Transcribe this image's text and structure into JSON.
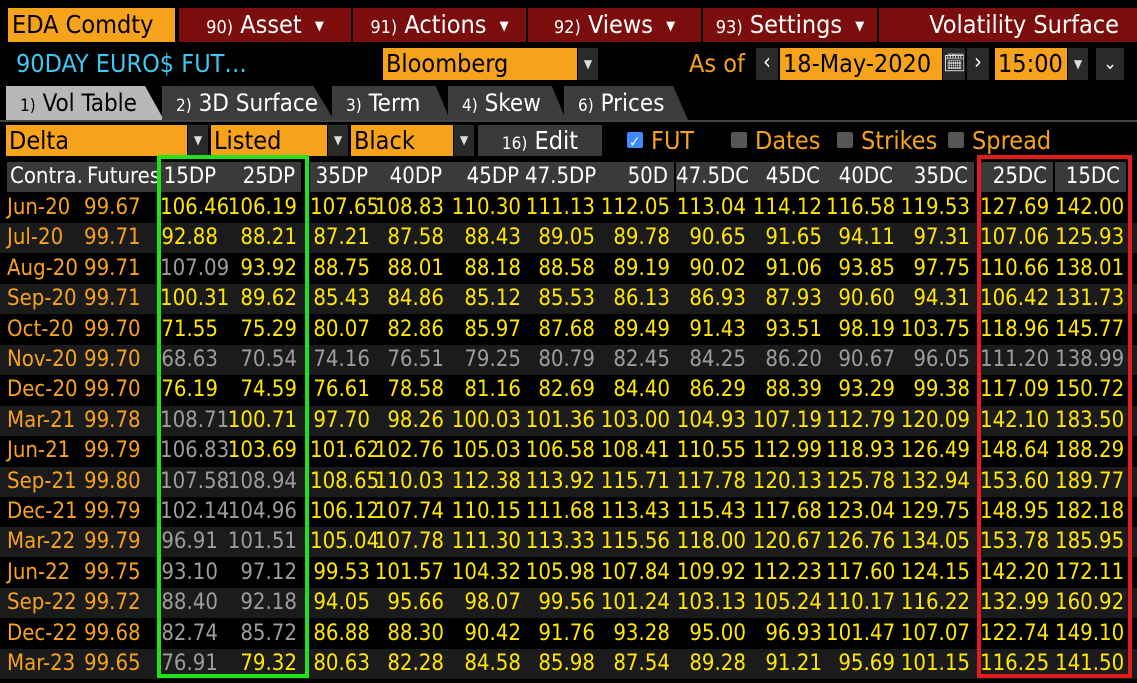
{
  "menubar": {
    "ticker": "EDA Comdty",
    "menus": [
      {
        "num": "90)",
        "label": "Asset"
      },
      {
        "num": "91)",
        "label": "Actions"
      },
      {
        "num": "92)",
        "label": "Views"
      },
      {
        "num": "93)",
        "label": "Settings"
      }
    ],
    "title": "Volatility Surface"
  },
  "toolbar": {
    "instrument": "90DAY EURO$ FUT…",
    "source": "Bloomberg",
    "as_of_label": "As of",
    "date": "18-May-2020",
    "time": "15:00",
    "prev_symbol": "‹",
    "next_symbol": "›"
  },
  "tabs": [
    {
      "num": "1)",
      "label": "Vol Table",
      "active": true
    },
    {
      "num": "2)",
      "label": "3D Surface",
      "active": false
    },
    {
      "num": "3)",
      "label": "Term",
      "active": false
    },
    {
      "num": "4)",
      "label": "Skew",
      "active": false
    },
    {
      "num": "6)",
      "label": "Prices",
      "active": false
    }
  ],
  "filters": {
    "measure": "Delta",
    "strikes_mode": "Listed",
    "model": "Black",
    "edit_num": "16)",
    "edit_label": "Edit",
    "checkboxes": [
      {
        "label": "FUT",
        "checked": true
      },
      {
        "label": "Dates",
        "checked": false
      },
      {
        "label": "Strikes",
        "checked": false
      },
      {
        "label": "Spread",
        "checked": false
      }
    ]
  },
  "table": {
    "headers": [
      "Contra…",
      "Futures",
      "15DP",
      "25DP",
      "35DP",
      "40DP",
      "45DP",
      "47.5DP",
      "50D",
      "47.5DC",
      "45DC",
      "40DC",
      "35DC",
      "25DC",
      "15DC"
    ],
    "rows": [
      {
        "contract": "Jun-20",
        "futures": "99.67",
        "values": [
          "106.46",
          "106.19",
          "107.65",
          "108.83",
          "110.30",
          "111.13",
          "112.05",
          "113.04",
          "114.12",
          "116.58",
          "119.53",
          "127.69",
          "142.00"
        ],
        "gray": []
      },
      {
        "contract": "Jul-20",
        "futures": "99.71",
        "values": [
          "92.88",
          "88.21",
          "87.21",
          "87.58",
          "88.43",
          "89.05",
          "89.78",
          "90.65",
          "91.65",
          "94.11",
          "97.31",
          "107.06",
          "125.93"
        ],
        "gray": []
      },
      {
        "contract": "Aug-20",
        "futures": "99.71",
        "values": [
          "107.09",
          "93.92",
          "88.75",
          "88.01",
          "88.18",
          "88.58",
          "89.19",
          "90.02",
          "91.06",
          "93.85",
          "97.75",
          "110.66",
          "138.01"
        ],
        "gray": [
          0
        ]
      },
      {
        "contract": "Sep-20",
        "futures": "99.71",
        "values": [
          "100.31",
          "89.62",
          "85.43",
          "84.86",
          "85.12",
          "85.53",
          "86.13",
          "86.93",
          "87.93",
          "90.60",
          "94.31",
          "106.42",
          "131.73"
        ],
        "gray": []
      },
      {
        "contract": "Oct-20",
        "futures": "99.70",
        "values": [
          "71.55",
          "75.29",
          "80.07",
          "82.86",
          "85.97",
          "87.68",
          "89.49",
          "91.43",
          "93.51",
          "98.19",
          "103.75",
          "118.96",
          "145.77"
        ],
        "gray": []
      },
      {
        "contract": "Nov-20",
        "futures": "99.70",
        "values": [
          "68.63",
          "70.54",
          "74.16",
          "76.51",
          "79.25",
          "80.79",
          "82.45",
          "84.25",
          "86.20",
          "90.67",
          "96.05",
          "111.20",
          "138.99"
        ],
        "gray": [
          0,
          1,
          2,
          3,
          4,
          5,
          6,
          7,
          8,
          9,
          10,
          11,
          12
        ]
      },
      {
        "contract": "Dec-20",
        "futures": "99.70",
        "values": [
          "76.19",
          "74.59",
          "76.61",
          "78.58",
          "81.16",
          "82.69",
          "84.40",
          "86.29",
          "88.39",
          "93.29",
          "99.38",
          "117.09",
          "150.72"
        ],
        "gray": []
      },
      {
        "contract": "Mar-21",
        "futures": "99.78",
        "values": [
          "108.71",
          "100.71",
          "97.70",
          "98.26",
          "100.03",
          "101.36",
          "103.00",
          "104.93",
          "107.19",
          "112.79",
          "120.09",
          "142.10",
          "183.50"
        ],
        "gray": [
          0
        ]
      },
      {
        "contract": "Jun-21",
        "futures": "99.79",
        "values": [
          "106.83",
          "103.69",
          "101.62",
          "102.76",
          "105.03",
          "106.58",
          "108.41",
          "110.55",
          "112.99",
          "118.93",
          "126.49",
          "148.64",
          "188.29"
        ],
        "gray": [
          0
        ]
      },
      {
        "contract": "Sep-21",
        "futures": "99.80",
        "values": [
          "107.58",
          "108.94",
          "108.65",
          "110.03",
          "112.38",
          "113.92",
          "115.71",
          "117.78",
          "120.13",
          "125.78",
          "132.94",
          "153.60",
          "189.77"
        ],
        "gray": [
          0,
          1
        ]
      },
      {
        "contract": "Dec-21",
        "futures": "99.79",
        "values": [
          "102.14",
          "104.96",
          "106.12",
          "107.74",
          "110.15",
          "111.68",
          "113.43",
          "115.43",
          "117.68",
          "123.04",
          "129.75",
          "148.95",
          "182.18"
        ],
        "gray": [
          0,
          1
        ]
      },
      {
        "contract": "Mar-22",
        "futures": "99.79",
        "values": [
          "96.91",
          "101.51",
          "105.04",
          "107.78",
          "111.30",
          "113.33",
          "115.56",
          "118.00",
          "120.67",
          "126.76",
          "134.05",
          "153.78",
          "185.95"
        ],
        "gray": [
          0,
          1
        ]
      },
      {
        "contract": "Jun-22",
        "futures": "99.75",
        "values": [
          "93.10",
          "97.12",
          "99.53",
          "101.57",
          "104.32",
          "105.98",
          "107.84",
          "109.92",
          "112.23",
          "117.60",
          "124.15",
          "142.20",
          "172.11"
        ],
        "gray": [
          0,
          1
        ]
      },
      {
        "contract": "Sep-22",
        "futures": "99.72",
        "values": [
          "88.40",
          "92.18",
          "94.05",
          "95.66",
          "98.07",
          "99.56",
          "101.24",
          "103.13",
          "105.24",
          "110.17",
          "116.22",
          "132.99",
          "160.92"
        ],
        "gray": [
          0,
          1
        ]
      },
      {
        "contract": "Dec-22",
        "futures": "99.68",
        "values": [
          "82.74",
          "85.72",
          "86.88",
          "88.30",
          "90.42",
          "91.76",
          "93.28",
          "95.00",
          "96.93",
          "101.47",
          "107.07",
          "122.74",
          "149.10"
        ],
        "gray": [
          0,
          1
        ]
      },
      {
        "contract": "Mar-23",
        "futures": "99.65",
        "values": [
          "76.91",
          "79.32",
          "80.63",
          "82.28",
          "84.58",
          "85.98",
          "87.54",
          "89.28",
          "91.21",
          "95.69",
          "101.15",
          "116.25",
          "141.50"
        ],
        "gray": [
          0
        ]
      }
    ]
  },
  "colors": {
    "accent_orange": "#f7a21b",
    "menu_red": "#7b0d0d",
    "value_yellow": "#ffe600",
    "value_gray": "#9d9d9d",
    "highlight_green": "#22e01a",
    "highlight_red": "#e21b1b",
    "instrument_cyan": "#3fc7f2"
  }
}
